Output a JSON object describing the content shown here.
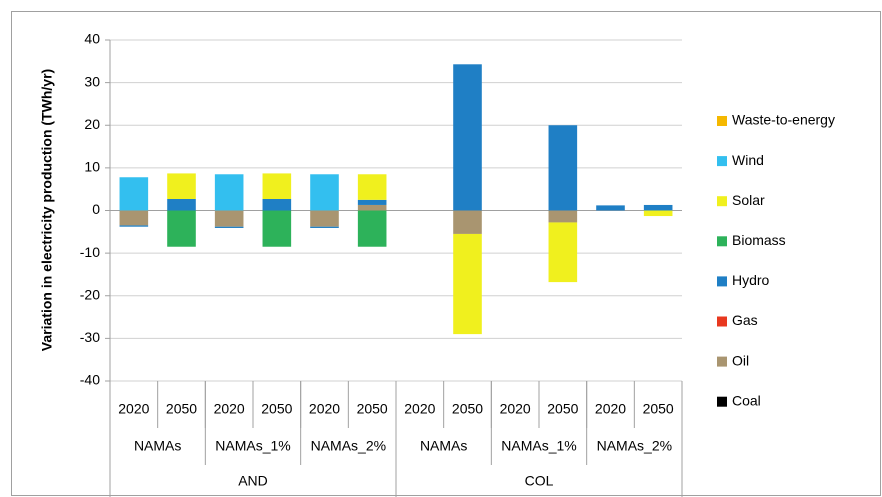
{
  "chart_data": {
    "type": "bar",
    "stacked": true,
    "y_label": "Variation in electricity production (TWh/yr)",
    "categories": [
      "2020",
      "2050",
      "2020",
      "2050",
      "2020",
      "2050",
      "2020",
      "2050",
      "2020",
      "2050",
      "2020",
      "2050"
    ],
    "scenarios": [
      "NAMAs",
      "NAMAs_1%",
      "NAMAs_2%",
      "NAMAs",
      "NAMAs_1%",
      "NAMAs_2%"
    ],
    "regions": [
      "AND",
      "COL"
    ],
    "ylim": [
      -40,
      40
    ],
    "yticks": [
      40,
      30,
      20,
      10,
      0,
      -10,
      -20,
      -30,
      -40
    ],
    "grid": true,
    "series": [
      {
        "name": "Waste-to-energy",
        "color": "#f5b800",
        "values": [
          0,
          0,
          0,
          0,
          0,
          0,
          0,
          0,
          0,
          0,
          0,
          0
        ]
      },
      {
        "name": "Wind",
        "color": "#33bfef",
        "values": [
          7.8,
          0,
          8.5,
          0,
          8.5,
          0,
          0,
          0,
          0,
          0,
          0,
          0
        ]
      },
      {
        "name": "Solar",
        "color": "#f0f01e",
        "values": [
          0,
          6,
          0,
          6,
          0,
          6,
          0,
          -23.5,
          0,
          -14,
          0,
          -1.3
        ]
      },
      {
        "name": "Biomass",
        "color": "#2db25a",
        "values": [
          0,
          -8.5,
          0,
          -8.5,
          0,
          -8.5,
          0,
          0,
          0,
          0,
          0,
          0
        ]
      },
      {
        "name": "Hydro",
        "color": "#1f7fc5",
        "values": [
          -0.3,
          2.7,
          -0.3,
          2.7,
          -0.3,
          1.2,
          0,
          34.3,
          0,
          20,
          1.2,
          1.3
        ]
      },
      {
        "name": "Gas",
        "color": "#e8381f",
        "values": [
          0,
          0,
          0,
          0,
          0,
          0,
          0,
          0,
          0,
          0,
          0,
          0
        ]
      },
      {
        "name": "Oil",
        "color": "#a99570",
        "values": [
          -3.5,
          0,
          -3.8,
          0,
          -3.8,
          1.3,
          0,
          -5.5,
          0,
          -2.8,
          0,
          0
        ]
      },
      {
        "name": "Coal",
        "color": "#000000",
        "values": [
          0,
          0,
          0,
          0,
          0,
          0,
          0,
          0,
          0,
          0,
          0,
          0
        ]
      }
    ]
  }
}
